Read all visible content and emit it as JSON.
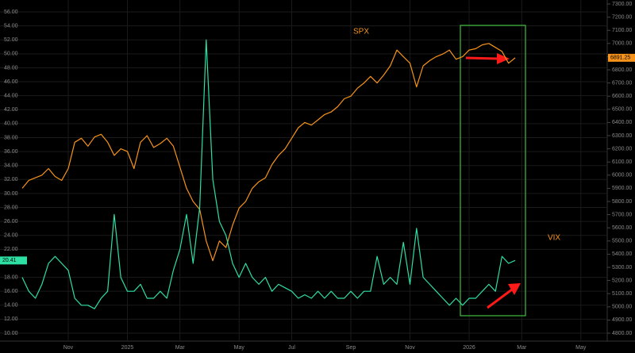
{
  "chart_data": {
    "type": "line",
    "annotations": [
      "SPX",
      "VIX"
    ],
    "categories": [
      null,
      null,
      null,
      null,
      null,
      null,
      null,
      "Nov",
      null,
      null,
      null,
      null,
      null,
      null,
      null,
      null,
      "2025",
      null,
      null,
      null,
      null,
      null,
      null,
      null,
      "Mar",
      null,
      null,
      null,
      null,
      null,
      null,
      null,
      null,
      "May",
      null,
      null,
      null,
      null,
      null,
      null,
      null,
      "Jul",
      null,
      null,
      null,
      null,
      null,
      null,
      null,
      null,
      "Sep",
      null,
      null,
      null,
      null,
      null,
      null,
      null,
      null,
      "Nov",
      null,
      null,
      null,
      null,
      null,
      null,
      null,
      null,
      "2026",
      null,
      null,
      null,
      null,
      null,
      null,
      null,
      "Mar",
      null,
      null,
      null,
      null,
      null,
      null,
      null,
      null,
      "May",
      null,
      null,
      null
    ],
    "series": [
      {
        "name": "SPX",
        "color": "#f7931a",
        "axis": "y2",
        "values": [
          5900,
          5960,
          5980,
          6000,
          6050,
          5990,
          5960,
          6050,
          6250,
          6280,
          6220,
          6290,
          6310,
          6250,
          6150,
          6200,
          6180,
          6050,
          6250,
          6300,
          6210,
          6240,
          6280,
          6220,
          6060,
          5900,
          5800,
          5740,
          5500,
          5350,
          5500,
          5450,
          5620,
          5750,
          5800,
          5900,
          5950,
          5980,
          6080,
          6150,
          6200,
          6280,
          6360,
          6400,
          6380,
          6420,
          6460,
          6480,
          6520,
          6580,
          6600,
          6660,
          6700,
          6750,
          6700,
          6760,
          6830,
          6950,
          6900,
          6850,
          6670,
          6830,
          6870,
          6900,
          6920,
          6950,
          6880,
          6900,
          6950,
          6960,
          6990,
          7000,
          6970,
          6940,
          6850,
          6891.25,
          null,
          null,
          null,
          null,
          null,
          null,
          null,
          null,
          null,
          null,
          null,
          null,
          null
        ]
      },
      {
        "name": "VIX",
        "color": "#2edfa3",
        "axis": "y",
        "values": [
          18,
          16,
          15,
          17,
          20,
          21,
          20,
          19,
          15,
          14,
          14,
          13.5,
          15,
          16,
          27,
          18,
          16,
          16,
          17,
          15,
          15,
          16,
          15,
          19,
          22,
          27,
          20,
          28,
          52,
          32,
          26,
          24,
          20,
          18,
          20,
          18,
          17,
          18,
          16,
          17,
          16.5,
          16,
          15,
          15.5,
          15,
          16,
          15,
          16,
          15,
          15,
          16,
          15,
          16,
          16,
          21,
          17,
          18,
          17,
          23,
          17,
          25,
          18,
          17,
          16,
          15,
          14,
          15,
          14,
          15,
          15,
          16,
          17,
          16,
          21,
          20,
          20.41,
          null,
          null,
          null,
          null,
          null,
          null,
          null,
          null,
          null,
          null,
          null,
          null,
          null
        ]
      }
    ],
    "ylim": [
      10,
      56
    ],
    "yticks": [
      {
        "value": 10,
        "label": "10.00"
      },
      {
        "value": 12,
        "label": "12.00"
      },
      {
        "value": 14,
        "label": "14.00"
      },
      {
        "value": 16,
        "label": "16.00"
      },
      {
        "value": 18,
        "label": "18.00"
      },
      {
        "value": 22,
        "label": "22.00"
      },
      {
        "value": 24,
        "label": "24.00"
      },
      {
        "value": 26,
        "label": "26.00"
      },
      {
        "value": 28,
        "label": "28.00"
      },
      {
        "value": 30,
        "label": "30.00"
      },
      {
        "value": 32,
        "label": "32.00"
      },
      {
        "value": 34,
        "label": "34.00"
      },
      {
        "value": 36,
        "label": "36.00"
      },
      {
        "value": 38,
        "label": "38.00"
      },
      {
        "value": 40,
        "label": "40.00"
      },
      {
        "value": 42,
        "label": "42.00"
      },
      {
        "value": 44,
        "label": "44.00"
      },
      {
        "value": 46,
        "label": "46.00"
      },
      {
        "value": 48,
        "label": "48.00"
      },
      {
        "value": 50,
        "label": "50.00"
      },
      {
        "value": 52,
        "label": "52.00"
      },
      {
        "value": 54,
        "label": "54.00"
      },
      {
        "value": 56,
        "label": "56.00"
      }
    ],
    "y2lim": [
      4800,
      7300
    ],
    "y2ticks": [
      {
        "value": 4800,
        "label": "4800.00"
      },
      {
        "value": 4900,
        "label": "4900.00"
      },
      {
        "value": 5000,
        "label": "5000.00"
      },
      {
        "value": 5100,
        "label": "5100.00"
      },
      {
        "value": 5200,
        "label": "5200.00"
      },
      {
        "value": 5300,
        "label": "5300.00"
      },
      {
        "value": 5400,
        "label": "5400.00"
      },
      {
        "value": 5500,
        "label": "5500.00"
      },
      {
        "value": 5600,
        "label": "5600.00"
      },
      {
        "value": 5700,
        "label": "5700.00"
      },
      {
        "value": 5800,
        "label": "5800.00"
      },
      {
        "value": 5900,
        "label": "5900.00"
      },
      {
        "value": 6000,
        "label": "6000.00"
      },
      {
        "value": 6100,
        "label": "6100.00"
      },
      {
        "value": 6200,
        "label": "6200.00"
      },
      {
        "value": 6300,
        "label": "6300.00"
      },
      {
        "value": 6400,
        "label": "6400.00"
      },
      {
        "value": 6500,
        "label": "6500.00"
      },
      {
        "value": 6600,
        "label": "6600.00"
      },
      {
        "value": 6700,
        "label": "6700.00"
      },
      {
        "value": 6800,
        "label": "6800.00"
      },
      {
        "value": 6900,
        "label": "6900.00"
      },
      {
        "value": 7000,
        "label": "7000.00"
      },
      {
        "value": 7100,
        "label": "7100.00"
      },
      {
        "value": 7200,
        "label": "7200.00"
      },
      {
        "value": 7300,
        "label": "7300.00"
      }
    ],
    "grid": true
  }
}
